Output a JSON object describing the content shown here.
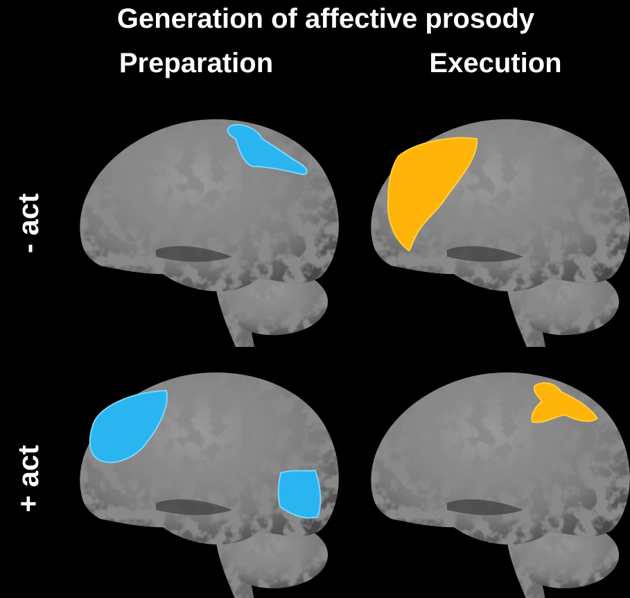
{
  "title": "Generation of affective prosody",
  "columns": [
    "Preparation",
    "Execution"
  ],
  "rows": [
    "- act",
    "+ act"
  ]
}
